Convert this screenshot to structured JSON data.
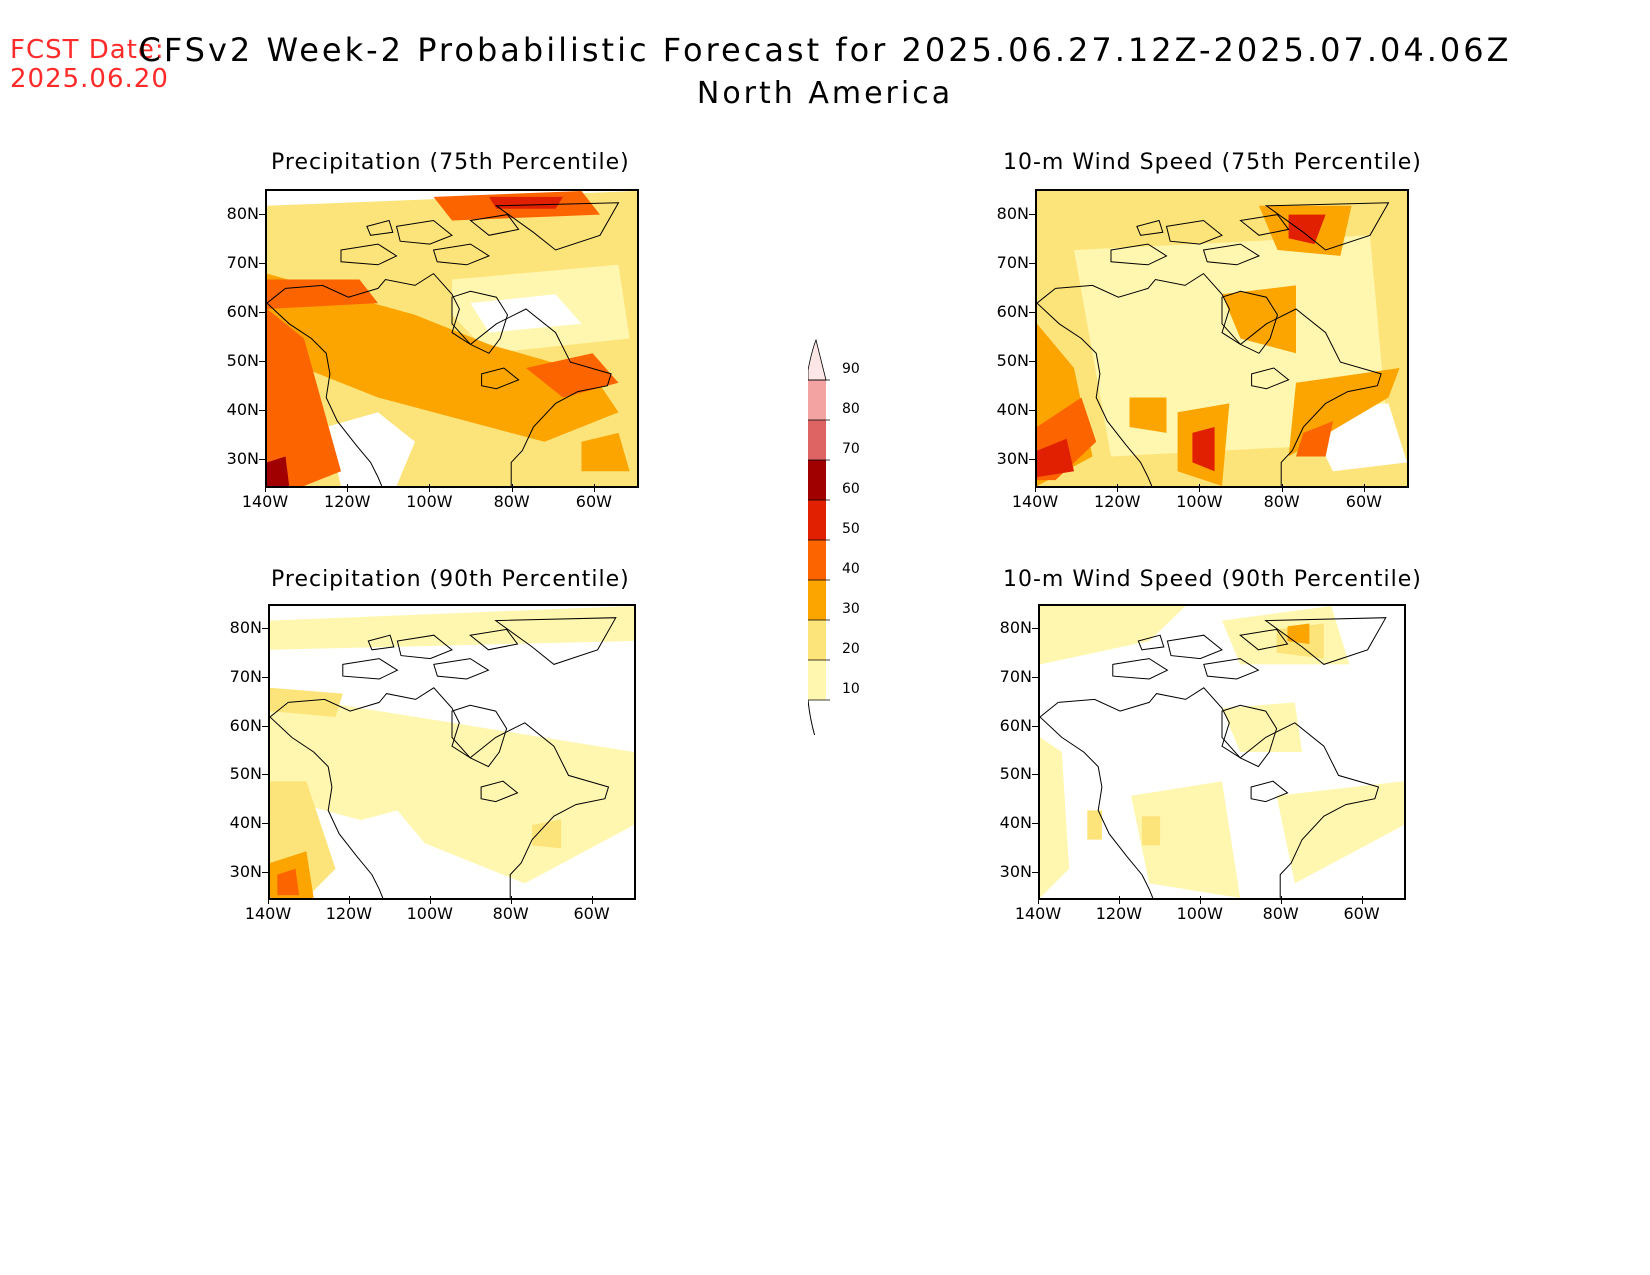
{
  "header": {
    "fcst_label": "FCST Date:",
    "fcst_date": "2025.06.20",
    "title": "CFSv2 Week-2 Probabilistic Forecast for 2025.06.27.12Z-2025.07.04.06Z",
    "subtitle": "North America"
  },
  "axes": {
    "lat_labels": [
      "80N",
      "70N",
      "60N",
      "50N",
      "40N",
      "30N"
    ],
    "lon_labels": [
      "140W",
      "120W",
      "100W",
      "80W",
      "60W"
    ]
  },
  "panels": [
    {
      "title": "Precipitation (75th Percentile)",
      "intensity": "high-precip"
    },
    {
      "title": "10-m Wind Speed (75th Percentile)",
      "intensity": "high-wind"
    },
    {
      "title": "Precipitation (90th Percentile)",
      "intensity": "low-precip"
    },
    {
      "title": "10-m Wind Speed (90th Percentile)",
      "intensity": "low-wind"
    }
  ],
  "colorbar": {
    "levels": [
      "10",
      "20",
      "30",
      "40",
      "50",
      "60",
      "70",
      "80",
      "90"
    ],
    "colors": [
      "#fff7b0",
      "#fde47a",
      "#fca400",
      "#fc6400",
      "#e02000",
      "#a00000",
      "#de6464",
      "#f4a3a3",
      "#fde6e6"
    ]
  }
}
